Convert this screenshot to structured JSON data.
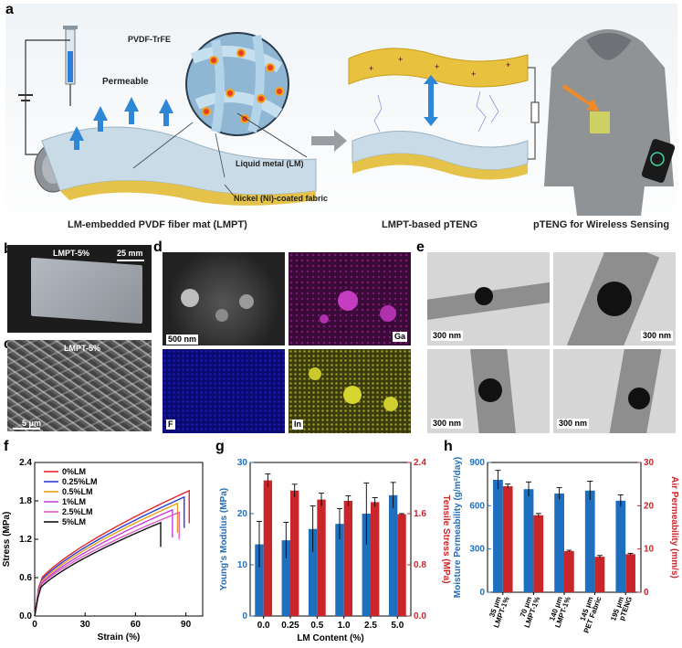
{
  "panel_labels": {
    "a": "a",
    "b": "b",
    "c": "c",
    "d": "d",
    "e": "e",
    "f": "f",
    "g": "g",
    "h": "h"
  },
  "panel_a": {
    "polymer": "PVDF-TrFE",
    "permeable": "Permeable",
    "liquid_metal": "Liquid metal (LM)",
    "fabric": "Nickel (Ni)-coated fabric",
    "caption_left": "LM-embedded PVDF fiber mat (LMPT)",
    "caption_mid": "LMPT-based pTENG",
    "caption_right": "pTENG for Wireless Sensing"
  },
  "panel_b": {
    "sample": "LMPT-5%",
    "scale": "25 mm"
  },
  "panel_c": {
    "sample": "LMPT-5%",
    "scale": "5 μm"
  },
  "panel_d": {
    "scale": "500 nm",
    "elements": [
      "Ga",
      "F",
      "In"
    ]
  },
  "panel_e": {
    "scales": [
      "300 nm",
      "300 nm",
      "300 nm",
      "300 nm"
    ]
  },
  "chart_data": [
    {
      "id": "f",
      "type": "line",
      "xlabel": "Strain (%)",
      "ylabel": "Stress (MPa)",
      "xlim": [
        0,
        100
      ],
      "ylim": [
        0,
        2.4
      ],
      "xticks": [
        "0",
        "30",
        "60",
        "90"
      ],
      "yticks": [
        "0.0",
        "0.6",
        "1.2",
        "1.8",
        "2.4"
      ],
      "series": [
        {
          "name": "0%LM",
          "color": "#e8252a",
          "strain_max": 92,
          "stress_max": 1.96
        },
        {
          "name": "0.25%LM",
          "color": "#2b3bd6",
          "strain_max": 89,
          "stress_max": 1.86
        },
        {
          "name": "0.5%LM",
          "color": "#e3a21a",
          "strain_max": 85,
          "stress_max": 1.76
        },
        {
          "name": "1%LM",
          "color": "#c23fd8",
          "strain_max": 82,
          "stress_max": 1.66
        },
        {
          "name": "2.5%LM",
          "color": "#e25cc8",
          "strain_max": 86,
          "stress_max": 1.62
        },
        {
          "name": "5%LM",
          "color": "#111111",
          "strain_max": 75,
          "stress_max": 1.46
        }
      ]
    },
    {
      "id": "g",
      "type": "bar",
      "xlabel": "LM Content (%)",
      "ylabel_left": "Young's Modulus (MPa)",
      "ylabel_right": "Tensile Stress (MPa)",
      "categories": [
        "0.0",
        "0.25",
        "0.5",
        "1.0",
        "2.5",
        "5.0"
      ],
      "ylim_left": [
        0,
        30
      ],
      "ylim_right": [
        0,
        2.4
      ],
      "yticks_left": [
        "0",
        "10",
        "20",
        "30"
      ],
      "yticks_right": [
        "0.0",
        "0.8",
        "1.6",
        "2.4"
      ],
      "series": [
        {
          "name": "Young's Modulus",
          "color": "#1f6fbf",
          "values": [
            14,
            14.8,
            17,
            18,
            20,
            23.6
          ],
          "errors": [
            4.5,
            3.5,
            4.5,
            3,
            6,
            2.5
          ]
        },
        {
          "name": "Tensile Stress",
          "color": "#c9262c",
          "values": [
            2.12,
            1.96,
            1.82,
            1.8,
            1.78,
            1.59
          ],
          "errors": [
            0.1,
            0.1,
            0.1,
            0.08,
            0.07,
            0.01
          ]
        }
      ]
    },
    {
      "id": "h",
      "type": "bar",
      "ylabel_left": "Moisture Permeability (g/m²/day)",
      "ylabel_right": "Air Permeability (mm/s)",
      "categories": [
        "35 μm LMPT-1%",
        "70 μm LMPT-1%",
        "140 μm LMPT-1%",
        "145 μm PET Fabric",
        "195 μm pTENG"
      ],
      "ylim_left": [
        0,
        900
      ],
      "ylim_right": [
        0,
        30
      ],
      "yticks_left": [
        "0",
        "300",
        "600",
        "900"
      ],
      "yticks_right": [
        "0",
        "10",
        "20",
        "30"
      ],
      "series": [
        {
          "name": "Moisture Permeability",
          "color": "#1f6fbf",
          "values": [
            780,
            715,
            685,
            705,
            635
          ],
          "errors": [
            65,
            50,
            40,
            65,
            40
          ]
        },
        {
          "name": "Air Permeability",
          "color": "#c9262c",
          "values": [
            24.5,
            17.8,
            9.5,
            8.2,
            8.8
          ],
          "errors": [
            0.5,
            0.4,
            0.2,
            0.3,
            0.2
          ]
        }
      ]
    }
  ]
}
